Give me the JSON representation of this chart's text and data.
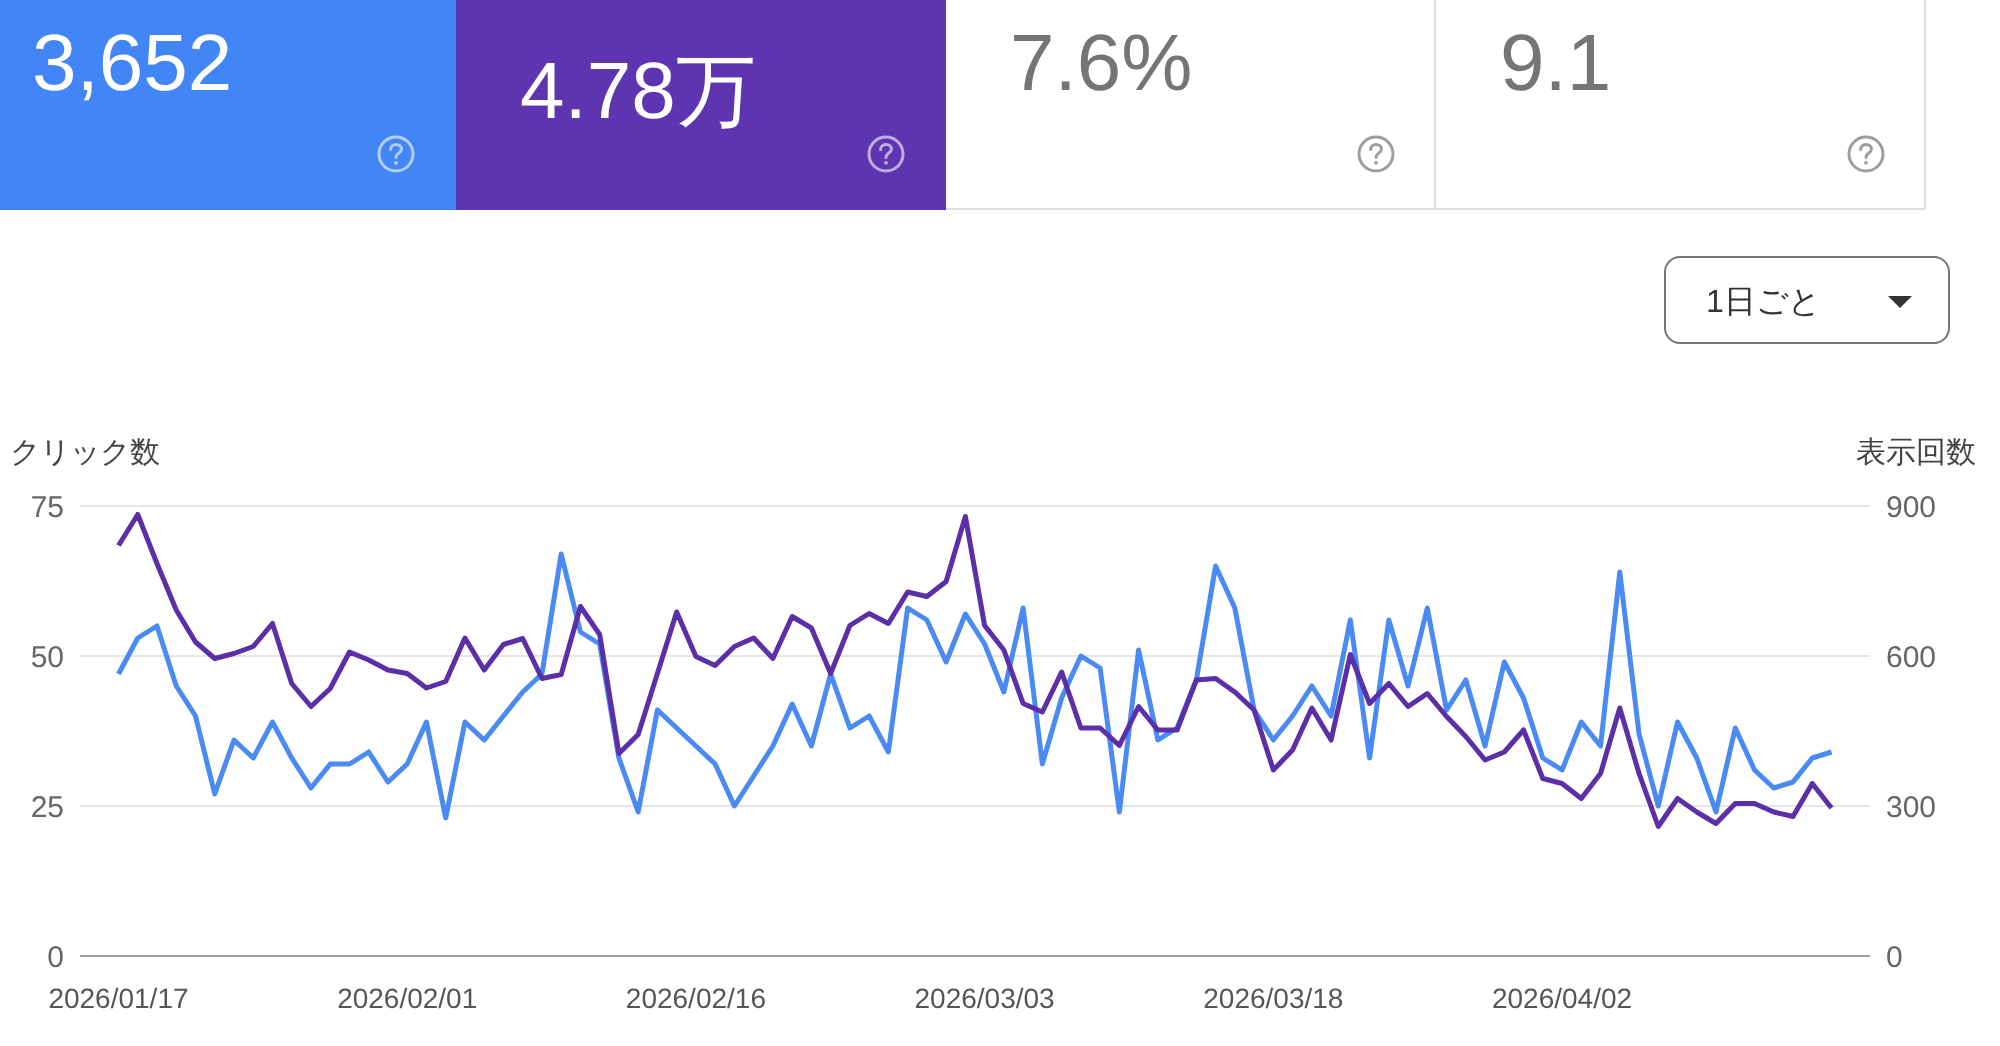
{
  "chart_data": {
    "type": "line",
    "ylabel": "クリック数",
    "y2label": "表示回数",
    "annotations": [
      "3,652",
      "4.78万",
      "7.6%",
      "9.1",
      "1日ごと"
    ],
    "x": [
      "2026-01-17",
      "2026-01-18",
      "2026-01-19",
      "2026-01-20",
      "2026-01-21",
      "2026-01-22",
      "2026-01-23",
      "2026-01-24",
      "2026-01-25",
      "2026-01-26",
      "2026-01-27",
      "2026-01-28",
      "2026-01-29",
      "2026-01-30",
      "2026-01-31",
      "2026-02-01",
      "2026-02-02",
      "2026-02-03",
      "2026-02-04",
      "2026-02-05",
      "2026-02-06",
      "2026-02-07",
      "2026-02-08",
      "2026-02-09",
      "2026-02-10",
      "2026-02-11",
      "2026-02-12",
      "2026-02-13",
      "2026-02-14",
      "2026-02-15",
      "2026-02-16",
      "2026-02-17",
      "2026-02-18",
      "2026-02-19",
      "2026-02-20",
      "2026-02-21",
      "2026-02-22",
      "2026-02-23",
      "2026-02-24",
      "2026-02-25",
      "2026-02-26",
      "2026-02-27",
      "2026-02-28",
      "2026-03-01",
      "2026-03-02",
      "2026-03-03",
      "2026-03-04",
      "2026-03-05",
      "2026-03-06",
      "2026-03-07",
      "2026-03-08",
      "2026-03-09",
      "2026-03-10",
      "2026-03-11",
      "2026-03-12",
      "2026-03-13",
      "2026-03-14",
      "2026-03-15",
      "2026-03-16",
      "2026-03-17",
      "2026-03-18",
      "2026-03-19",
      "2026-03-20",
      "2026-03-21",
      "2026-03-22",
      "2026-03-23",
      "2026-03-24",
      "2026-03-25",
      "2026-03-26",
      "2026-03-27",
      "2026-03-28",
      "2026-03-29",
      "2026-03-30",
      "2026-03-31",
      "2026-04-01",
      "2026-04-02",
      "2026-04-03",
      "2026-04-04",
      "2026-04-05",
      "2026-04-06",
      "2026-04-07",
      "2026-04-08",
      "2026-04-09",
      "2026-04-10",
      "2026-04-11",
      "2026-04-12",
      "2026-04-13",
      "2026-04-14",
      "2026-04-15",
      "2026-04-16"
    ],
    "series": [
      {
        "color": "#4a8af4",
        "axis": "y",
        "values": [
          47,
          53,
          55,
          45,
          40,
          27,
          36,
          33,
          39,
          33,
          28,
          32,
          32,
          34,
          29,
          32,
          39,
          23,
          39,
          36,
          40,
          44,
          47,
          67,
          54,
          52,
          33,
          24,
          41,
          38,
          35,
          32,
          25,
          30,
          35,
          42,
          35,
          47,
          38,
          40,
          34,
          58,
          56,
          49,
          57,
          52,
          44,
          58,
          32,
          43,
          50,
          48,
          24,
          51,
          36,
          38,
          46,
          65,
          58,
          41,
          36,
          40,
          45,
          40,
          56,
          33,
          56,
          45,
          58,
          41,
          46,
          35,
          49,
          43,
          33,
          31,
          39,
          35,
          64,
          37,
          25,
          39,
          33,
          24,
          38,
          31,
          28,
          29,
          33,
          34
        ]
      },
      {
        "color": "#5b2fa8",
        "axis": "y2",
        "values": [
          821,
          883,
          785,
          692,
          628,
          595,
          605,
          619,
          665,
          545,
          499,
          535,
          608,
          592,
          572,
          565,
          536,
          549,
          636,
          572,
          623,
          635,
          555,
          563,
          699,
          643,
          405,
          443,
          565,
          688,
          599,
          581,
          619,
          636,
          595,
          679,
          656,
          565,
          661,
          685,
          665,
          728,
          719,
          749,
          879,
          661,
          612,
          505,
          488,
          568,
          456,
          456,
          421,
          499,
          452,
          452,
          552,
          555,
          528,
          492,
          372,
          412,
          496,
          432,
          603,
          505,
          545,
          499,
          525,
          479,
          439,
          392,
          408,
          452,
          355,
          345,
          315,
          365,
          496,
          365,
          259,
          315,
          288,
          265,
          305,
          305,
          288,
          279,
          345,
          296
        ]
      }
    ],
    "xlim": [
      "2026-01-15",
      "2026-04-18"
    ],
    "xticks": [
      {
        "value": "2026-01-17",
        "label": "2026/01/17"
      },
      {
        "value": "2026-02-01",
        "label": "2026/02/01"
      },
      {
        "value": "2026-02-16",
        "label": "2026/02/16"
      },
      {
        "value": "2026-03-03",
        "label": "2026/03/03"
      },
      {
        "value": "2026-03-18",
        "label": "2026/03/18"
      },
      {
        "value": "2026-04-02",
        "label": "2026/04/02"
      }
    ],
    "ylim": [
      0,
      75
    ],
    "yticks": [
      0,
      25,
      50,
      75
    ],
    "y2lim": [
      0,
      900
    ],
    "y2ticks": [
      0,
      300,
      600,
      900
    ],
    "grid": "y",
    "legend": false,
    "marker": "none",
    "line_style": "solid"
  }
}
